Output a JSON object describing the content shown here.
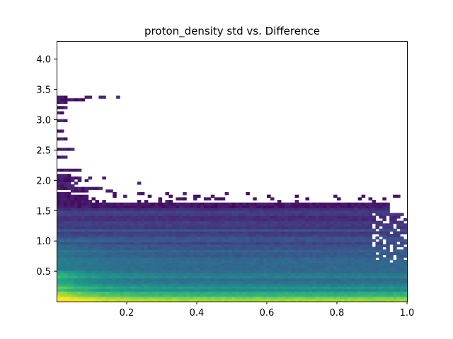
{
  "chart_data": {
    "type": "heatmap",
    "title": "proton_density std vs. Difference",
    "xlabel": "",
    "ylabel": "",
    "xlim": [
      0.0,
      1.0
    ],
    "ylim": [
      0.0,
      4.3
    ],
    "x_ticks": [
      0.2,
      0.4,
      0.6,
      0.8,
      1.0
    ],
    "x_tick_labels": [
      "0.2",
      "0.4",
      "0.6",
      "0.8",
      "1.0"
    ],
    "y_ticks": [
      0.5,
      1.0,
      1.5,
      2.0,
      2.5,
      3.0,
      3.5,
      4.0
    ],
    "y_tick_labels": [
      "0.5",
      "1.0",
      "1.5",
      "2.0",
      "2.5",
      "3.0",
      "3.5",
      "4.0"
    ],
    "colormap": "viridis",
    "grid": false,
    "legend": "none",
    "x_bins": 100,
    "y_bins": 100,
    "y_bin_width": 0.043
  }
}
